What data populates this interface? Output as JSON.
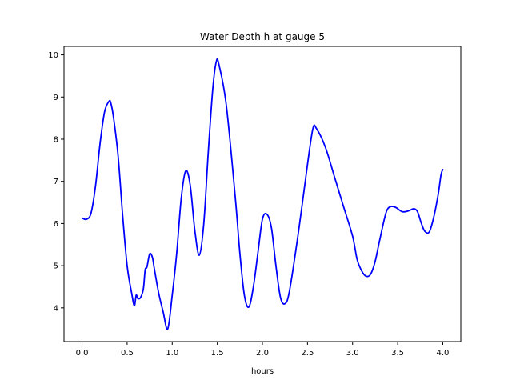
{
  "chart_data": {
    "type": "line",
    "title": "Water Depth h at gauge 5",
    "xlabel": "hours",
    "ylabel": "",
    "xlim": [
      -0.2,
      4.2
    ],
    "ylim": [
      3.2,
      10.2
    ],
    "grid": false,
    "x_ticks": [
      "0.0",
      "0.5",
      "1.0",
      "1.5",
      "2.0",
      "2.5",
      "3.0",
      "3.5",
      "4.0"
    ],
    "y_ticks": [
      "4",
      "5",
      "6",
      "7",
      "8",
      "9",
      "10"
    ],
    "line_color": "#0000ff",
    "series": [
      {
        "x": [
          0.0,
          0.05,
          0.1,
          0.15,
          0.2,
          0.25,
          0.3,
          0.32,
          0.35,
          0.4,
          0.45,
          0.5,
          0.55,
          0.58,
          0.6,
          0.62,
          0.65,
          0.68,
          0.7,
          0.72,
          0.75,
          0.78,
          0.8,
          0.85,
          0.9,
          0.95,
          1.0,
          1.05,
          1.1,
          1.15,
          1.2,
          1.25,
          1.3,
          1.35,
          1.4,
          1.45,
          1.49,
          1.52,
          1.6,
          1.7,
          1.75,
          1.8,
          1.85,
          1.9,
          1.95,
          2.0,
          2.05,
          2.1,
          2.15,
          2.2,
          2.25,
          2.3,
          2.4,
          2.5,
          2.56,
          2.6,
          2.7,
          2.8,
          2.9,
          3.0,
          3.05,
          3.1,
          3.15,
          3.2,
          3.25,
          3.3,
          3.37,
          3.42,
          3.48,
          3.55,
          3.62,
          3.68,
          3.72,
          3.76,
          3.8,
          3.85,
          3.9,
          3.95,
          3.98,
          4.0
        ],
        "y": [
          6.13,
          6.1,
          6.25,
          6.9,
          7.9,
          8.65,
          8.9,
          8.85,
          8.5,
          7.6,
          6.2,
          5.0,
          4.35,
          4.05,
          4.3,
          4.22,
          4.25,
          4.45,
          4.9,
          4.97,
          5.28,
          5.2,
          4.95,
          4.35,
          3.9,
          3.5,
          4.3,
          5.3,
          6.6,
          7.25,
          6.9,
          5.85,
          5.25,
          6.0,
          7.7,
          9.2,
          9.85,
          9.75,
          8.8,
          6.6,
          5.3,
          4.3,
          4.02,
          4.5,
          5.3,
          6.1,
          6.22,
          5.9,
          5.0,
          4.25,
          4.1,
          4.4,
          5.8,
          7.4,
          8.25,
          8.25,
          7.8,
          7.1,
          6.4,
          5.7,
          5.15,
          4.88,
          4.75,
          4.8,
          5.1,
          5.6,
          6.25,
          6.4,
          6.38,
          6.28,
          6.3,
          6.35,
          6.28,
          6.02,
          5.82,
          5.8,
          6.15,
          6.7,
          7.15,
          7.28
        ]
      }
    ]
  }
}
